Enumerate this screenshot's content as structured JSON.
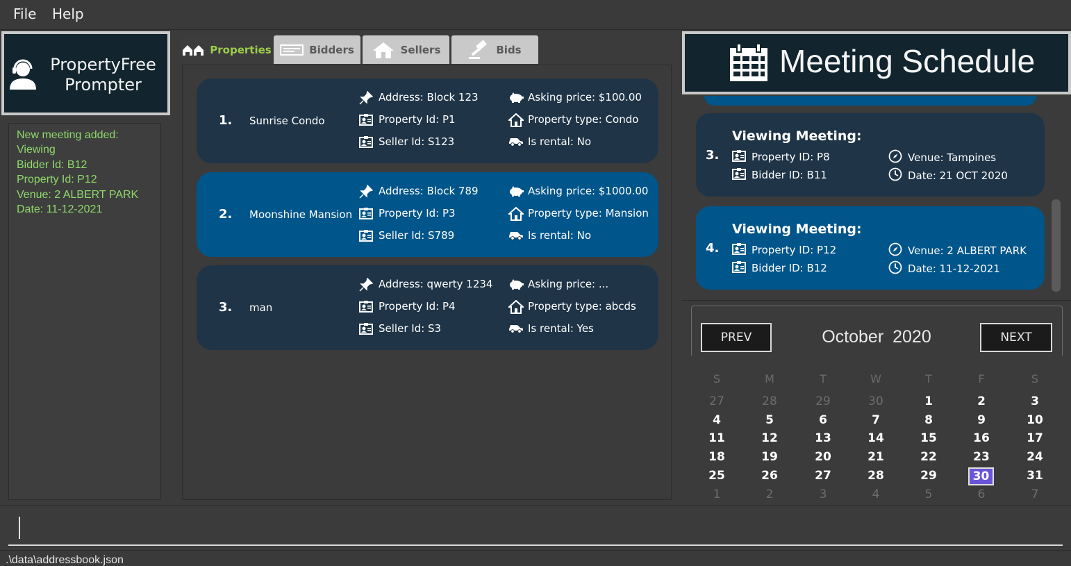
{
  "menu": {
    "file": "File",
    "help": "Help"
  },
  "brand": {
    "line1": "PropertyFree",
    "line2": "Prompter"
  },
  "result_lines": [
    "New meeting added:",
    "Viewing",
    "Bidder Id: B12",
    "Property Id: P12",
    "Venue: 2 ALBERT PARK",
    "Date: 11-12-2021"
  ],
  "tabs": [
    {
      "label": "Properties",
      "icon": "houses-icon"
    },
    {
      "label": "Bidders",
      "icon": "id-card-icon"
    },
    {
      "label": "Sellers",
      "icon": "house-icon"
    },
    {
      "label": "Bids",
      "icon": "gavel-icon"
    }
  ],
  "properties": [
    {
      "index": "1.",
      "name": "Sunrise Condo",
      "address": "Address: Block 123",
      "property_id": "Property Id: P1",
      "seller_id": "Seller Id: S123",
      "price": "Asking price: $100.00",
      "type": "Property type: Condo",
      "rental": "Is rental: No"
    },
    {
      "index": "2.",
      "name": "Moonshine Mansion",
      "address": "Address: Block 789",
      "property_id": "Property Id: P3",
      "seller_id": "Seller Id: S789",
      "price": "Asking price: $1000.00",
      "type": "Property type: Mansion",
      "rental": "Is rental: No"
    },
    {
      "index": "3.",
      "name": "man",
      "address": "Address: qwerty 1234",
      "property_id": "Property Id: P4",
      "seller_id": "Seller Id: S3",
      "price": "Asking price: ...",
      "type": "Property type: abcds",
      "rental": "Is rental: Yes"
    }
  ],
  "schedule_title": "Meeting Schedule",
  "meetings": [
    {
      "index": "3.",
      "title": "Viewing Meeting:",
      "property_id": "Property ID: P8",
      "bidder_id": "Bidder ID: B11",
      "venue": "Venue: Tampines",
      "date": "Date: 21 OCT 2020"
    },
    {
      "index": "4.",
      "title": "Viewing Meeting:",
      "property_id": "Property ID: P12",
      "bidder_id": "Bidder ID: B12",
      "venue": "Venue: 2 ALBERT PARK",
      "date": "Date: 11-12-2021"
    }
  ],
  "calendar": {
    "prev": "PREV",
    "next": "NEXT",
    "month": "October",
    "year": "2020",
    "weekdays": [
      "S",
      "M",
      "T",
      "W",
      "T",
      "F",
      "S"
    ],
    "weeks": [
      [
        "27",
        "28",
        "29",
        "30",
        "1",
        "2",
        "3"
      ],
      [
        "4",
        "5",
        "6",
        "7",
        "8",
        "9",
        "10"
      ],
      [
        "11",
        "12",
        "13",
        "14",
        "15",
        "16",
        "17"
      ],
      [
        "18",
        "19",
        "20",
        "21",
        "22",
        "23",
        "24"
      ],
      [
        "25",
        "26",
        "27",
        "28",
        "29",
        "30",
        "31"
      ],
      [
        "1",
        "2",
        "3",
        "4",
        "5",
        "6",
        "7"
      ]
    ],
    "today": "30"
  },
  "command_value": "",
  "status_path": ".\\data\\addressbook.json",
  "colors": {
    "card": "#1f3447",
    "selected": "#00558a",
    "result_text": "#8fd96a",
    "active_tab": "#9ccc4a",
    "today": "#6a55d8"
  }
}
